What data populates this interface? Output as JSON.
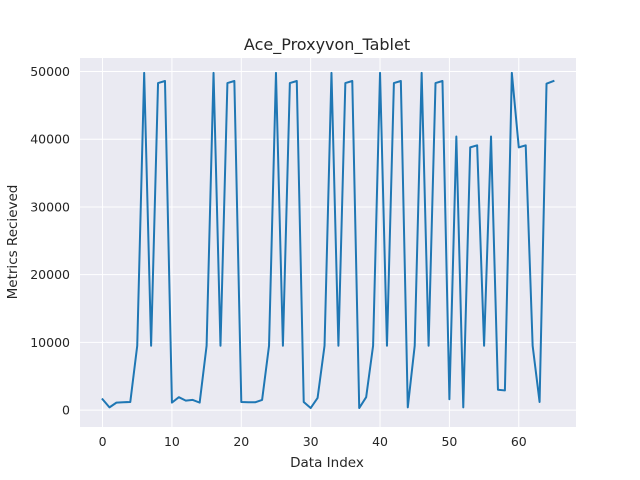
{
  "chart_data": {
    "type": "line",
    "title": "Ace_Proxyvon_Tablet",
    "xlabel": "Data Index",
    "ylabel": "Metrics Recieved",
    "xlim": [
      -3.25,
      68.25
    ],
    "ylim": [
      -2500,
      52000
    ],
    "xticks": [
      0,
      10,
      20,
      30,
      40,
      50,
      60
    ],
    "yticks": [
      0,
      10000,
      20000,
      30000,
      40000,
      50000
    ],
    "grid": true,
    "background": "#eaeaf2",
    "series": [
      {
        "color": "#1f77b4",
        "x": [
          0,
          1,
          2,
          3,
          4,
          5,
          6,
          7,
          8,
          9,
          10,
          11,
          12,
          13,
          14,
          15,
          16,
          17,
          18,
          19,
          20,
          21,
          22,
          23,
          24,
          25,
          26,
          27,
          28,
          29,
          30,
          31,
          32,
          33,
          34,
          35,
          36,
          37,
          38,
          39,
          40,
          41,
          42,
          43,
          44,
          45,
          46,
          47,
          48,
          49,
          50,
          51,
          52,
          53,
          54,
          55,
          56,
          57,
          58,
          59,
          60,
          61,
          62,
          63,
          64,
          65
        ],
        "values": [
          1600,
          400,
          1100,
          1150,
          1200,
          9500,
          49800,
          9500,
          48300,
          48600,
          1100,
          1900,
          1400,
          1500,
          1100,
          9500,
          49800,
          9500,
          48300,
          48600,
          1200,
          1150,
          1150,
          1500,
          9500,
          49800,
          9500,
          48300,
          48600,
          1200,
          300,
          1800,
          9500,
          49800,
          9500,
          48300,
          48600,
          300,
          1900,
          9500,
          49800,
          9500,
          48300,
          48600,
          400,
          9500,
          49800,
          9500,
          48300,
          48600,
          1600,
          40400,
          400,
          38800,
          39100,
          9500,
          40400,
          3000,
          2900,
          49800,
          38800,
          39100,
          9500,
          1200,
          48200,
          48600
        ]
      }
    ]
  }
}
